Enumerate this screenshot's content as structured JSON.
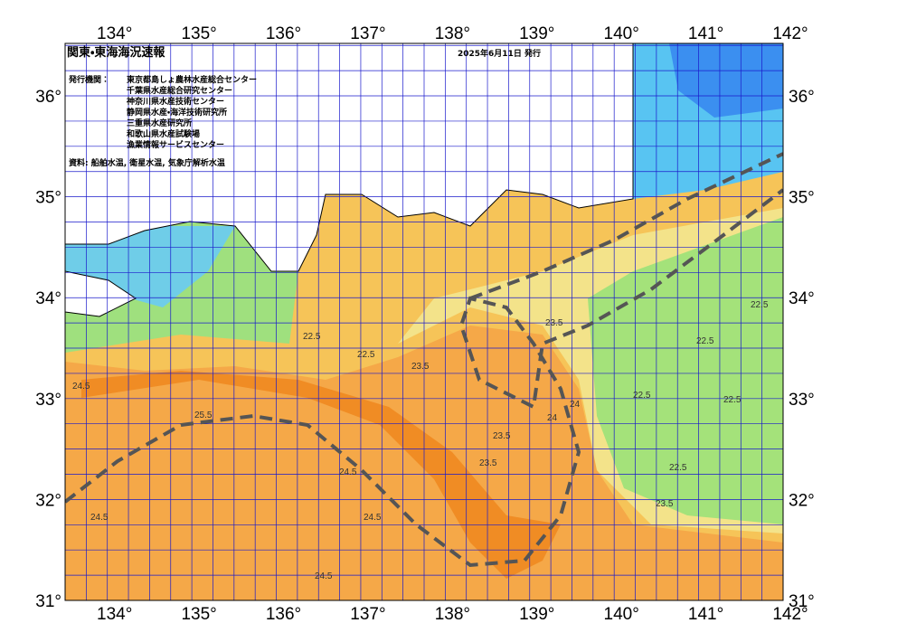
{
  "header": {
    "title": "関東・東海海況速報",
    "date": "2025年6月11日 発行"
  },
  "credits": {
    "heading": "発行機関：",
    "organizations": [
      "東京都島しょ農林水産総合センター",
      "千葉県水産総合研究センター",
      "神奈川県水産技術センター",
      "静岡県水産・海洋技術研究所",
      "三重県水産研究所",
      "和歌山県水産試験場",
      "漁業情報サービスセンター"
    ],
    "source": "資料: 船舶水温, 衛星水温, 気象庁解析水温"
  },
  "map": {
    "longitude_labels": [
      "134°",
      "135°",
      "136°",
      "137°",
      "138°",
      "139°",
      "140°",
      "141°",
      "142°"
    ],
    "latitude_labels": [
      "31°",
      "32°",
      "33°",
      "34°",
      "35°",
      "36°"
    ],
    "contour_labels": [
      "24.5",
      "25.5",
      "24.5",
      "24.5",
      "24.5",
      "24.5",
      "23.5",
      "23.5",
      "22.5",
      "22.5",
      "23.5",
      "24",
      "22.5",
      "22.5",
      "23.5",
      "22.5",
      "24",
      "22.5",
      "23.5",
      "22.5"
    ]
  }
}
